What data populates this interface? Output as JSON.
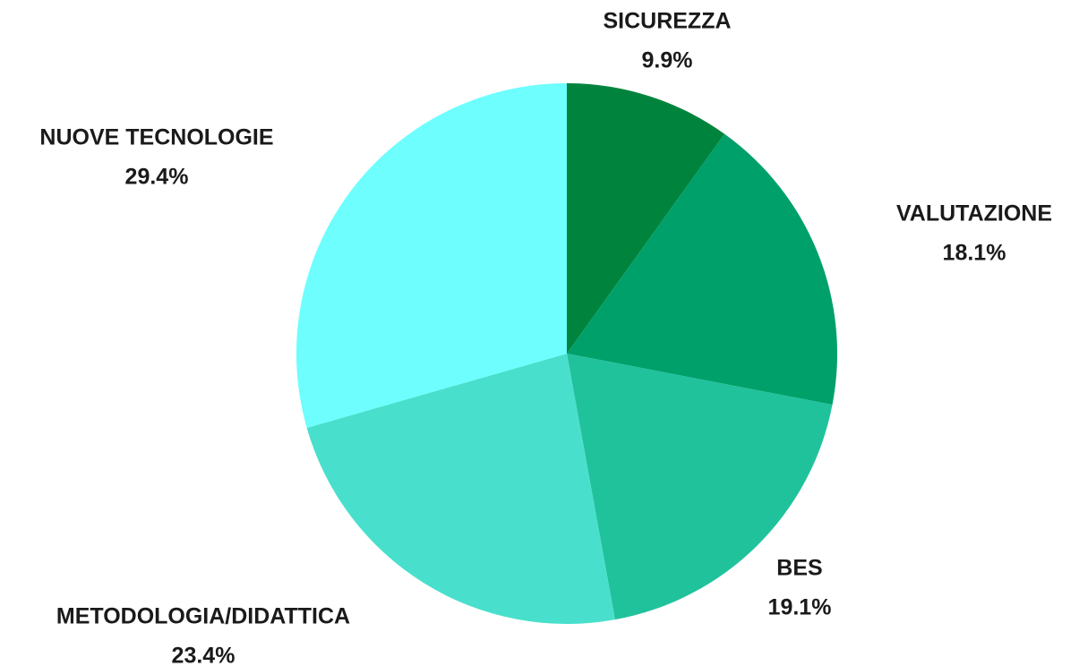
{
  "chart_data": {
    "type": "pie",
    "categories": [
      "SICUREZZA",
      "VALUTAZIONE",
      "BES",
      "METODOLOGIA/DIDATTICA",
      "NUOVE TECNOLOGIE"
    ],
    "values": [
      9.9,
      18.1,
      19.1,
      23.4,
      29.4
    ],
    "value_labels": [
      "9.9%",
      "18.1%",
      "19.1%",
      "23.4%",
      "29.4%"
    ],
    "colors": [
      "#00843d",
      "#00a06a",
      "#20c29c",
      "#48e0cc",
      "#6efefe"
    ]
  }
}
